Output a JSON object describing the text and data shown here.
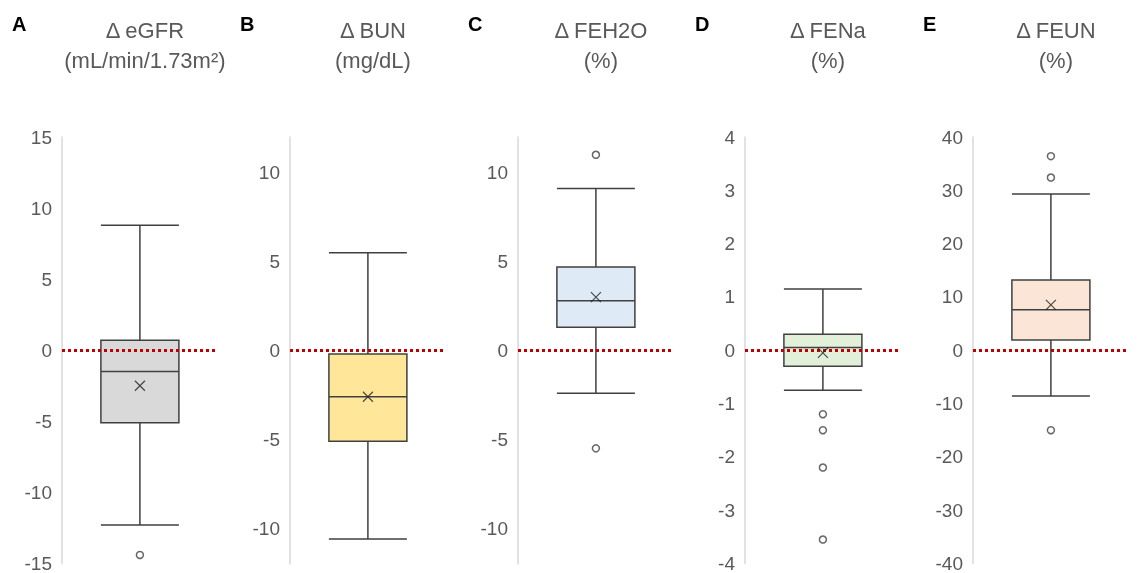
{
  "chart_data": [
    {
      "type": "box",
      "title": "Δ eGFR",
      "subtitle": "(mL/min/1.73m²)",
      "annotations": [
        "A"
      ],
      "categories": [
        null
      ],
      "ylim": [
        -15,
        15
      ],
      "yticks": [
        -15,
        -10,
        -5,
        0,
        5,
        10,
        15
      ],
      "grid": false,
      "series": [
        {
          "color": "#d9d9d9",
          "boxes": [
            {
              "low": -12.3,
              "q1": -5.1,
              "median": -1.5,
              "q3": 0.7,
              "high": 8.8,
              "mean": -2.5,
              "outliers": [
                -14.4
              ]
            }
          ]
        }
      ],
      "ref_lines": [
        {
          "axis": "y",
          "value": 0,
          "color": "#c00000",
          "line_style": "dotted"
        }
      ]
    },
    {
      "type": "box",
      "title": "Δ BUN",
      "subtitle": "(mg/dL)",
      "annotations": [
        "B"
      ],
      "categories": [
        null
      ],
      "ylim": [
        -12,
        12
      ],
      "yticks": [
        -10,
        -5,
        0,
        5,
        10
      ],
      "grid": false,
      "series": [
        {
          "color": "#ffe699",
          "boxes": [
            {
              "low": -10.6,
              "q1": -5.1,
              "median": -2.6,
              "q3": -0.2,
              "high": 5.5,
              "mean": -2.6
            }
          ]
        }
      ],
      "ref_lines": [
        {
          "axis": "y",
          "value": 0,
          "color": "#c00000",
          "line_style": "dotted"
        }
      ]
    },
    {
      "type": "box",
      "title": "Δ FEH2O",
      "subtitle": "(%)",
      "annotations": [
        "C"
      ],
      "categories": [
        null
      ],
      "ylim": [
        -12,
        12
      ],
      "yticks": [
        -10,
        -5,
        0,
        5,
        10
      ],
      "grid": false,
      "series": [
        {
          "color": "#deebf7",
          "boxes": [
            {
              "low": -2.4,
              "q1": 1.3,
              "median": 2.8,
              "q3": 4.7,
              "high": 9.1,
              "mean": 3.0,
              "outliers": [
                11,
                -5.5
              ]
            }
          ]
        }
      ],
      "ref_lines": [
        {
          "axis": "y",
          "value": 0,
          "color": "#c00000",
          "line_style": "dotted"
        }
      ]
    },
    {
      "type": "box",
      "title": "Δ FENa",
      "subtitle": "(%)",
      "annotations": [
        "D"
      ],
      "categories": [
        null
      ],
      "ylim": [
        -4,
        4
      ],
      "yticks": [
        -4,
        -3,
        -2,
        -1,
        0,
        1,
        2,
        3,
        4
      ],
      "grid": false,
      "series": [
        {
          "color": "#e2f0d9",
          "boxes": [
            {
              "low": -0.75,
              "q1": -0.3,
              "median": 0.05,
              "q3": 0.3,
              "high": 1.15,
              "mean": -0.05,
              "outliers": [
                -1.2,
                -1.5,
                -2.2,
                -3.55
              ]
            }
          ]
        }
      ],
      "ref_lines": [
        {
          "axis": "y",
          "value": 0,
          "color": "#c00000",
          "line_style": "dotted"
        }
      ]
    },
    {
      "type": "box",
      "title": "Δ FEUN",
      "subtitle": "(%)",
      "annotations": [
        "E"
      ],
      "categories": [
        null
      ],
      "ylim": [
        -40,
        40
      ],
      "yticks": [
        -40,
        -30,
        -20,
        -10,
        0,
        10,
        20,
        30,
        40
      ],
      "grid": false,
      "series": [
        {
          "color": "#fbe5d6",
          "boxes": [
            {
              "low": -8.6,
              "q1": 1.9,
              "median": 7.6,
              "q3": 13.2,
              "high": 29.3,
              "mean": 8.5,
              "outliers": [
                36.4,
                32.4,
                -15
              ]
            }
          ]
        }
      ],
      "ref_lines": [
        {
          "axis": "y",
          "value": 0,
          "color": "#c00000",
          "line_style": "dotted"
        }
      ]
    }
  ]
}
